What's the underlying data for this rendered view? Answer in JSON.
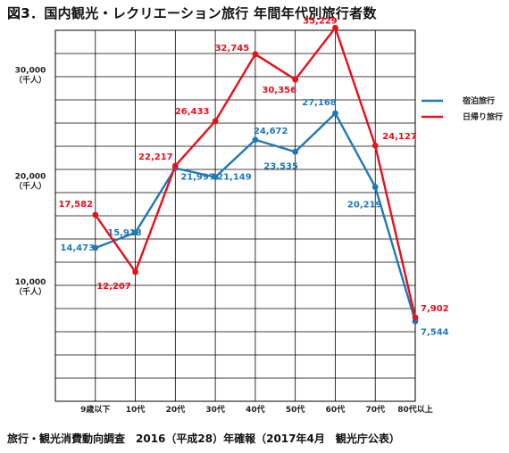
{
  "title": "図3．国内観光・レクリエーション旅行 年間年代別旅行者数",
  "source": "旅行・観光消費動向調査　2016（平成28）年確報（2017年4月　観光庁公表）",
  "colors": {
    "series1": "#1f78b4",
    "series2": "#e8101a",
    "grid": "#000000"
  },
  "chart_data": {
    "type": "line",
    "categories": [
      "9歳以下",
      "10代",
      "20代",
      "30代",
      "40代",
      "50代",
      "60代",
      "70代",
      "80代以上"
    ],
    "ylim": [
      0,
      35000
    ],
    "y_ticks": [
      {
        "value": 10000,
        "label": "10,000",
        "unit": "（千人）"
      },
      {
        "value": 20000,
        "label": "20,000",
        "unit": "（千人）"
      },
      {
        "value": 30000,
        "label": "30,000",
        "unit": "（千人）"
      }
    ],
    "grid": true,
    "legend_position": "right",
    "series": [
      {
        "name": "宿泊旅行",
        "values": [
          14473,
          15913,
          21997,
          21149,
          24672,
          23535,
          27168,
          20219,
          7544
        ],
        "labels": [
          "14,473",
          "15,913",
          "21,997",
          "21,149",
          "24,672",
          "23,535",
          "27,168",
          "20,219",
          "7,544"
        ]
      },
      {
        "name": "日帰り旅行",
        "values": [
          17582,
          12207,
          22217,
          26433,
          32745,
          30356,
          35229,
          24127,
          7902
        ],
        "labels": [
          "17,582",
          "12,207",
          "22,217",
          "26,433",
          "32,745",
          "30,356",
          "35,229",
          "24,127",
          "7,902"
        ]
      }
    ]
  }
}
